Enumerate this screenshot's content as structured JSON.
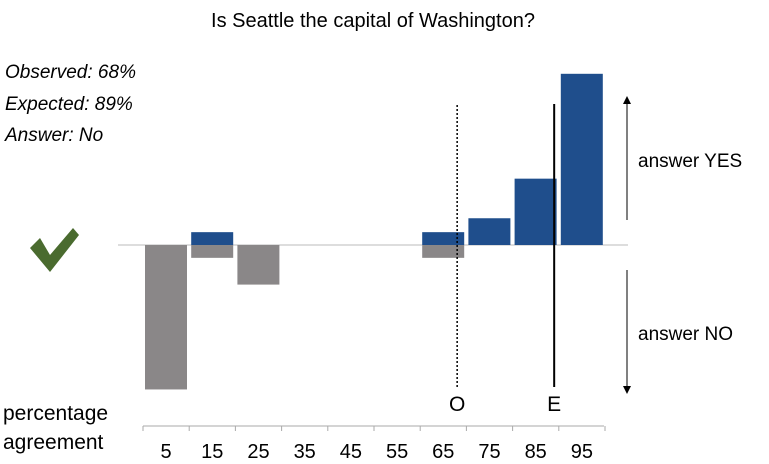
{
  "chart_data": {
    "type": "bar",
    "title": "Is Seattle the capital of Washington?",
    "xlabel": "percentage agreement",
    "categories": [
      "5",
      "15",
      "25",
      "35",
      "45",
      "55",
      "65",
      "75",
      "85",
      "95"
    ],
    "series": [
      {
        "name": "answer YES",
        "color": "#1f4e8c",
        "values": [
          0,
          12,
          0,
          0,
          0,
          0,
          12,
          25,
          62,
          160
        ]
      },
      {
        "name": "answer NO",
        "color": "#8a8788",
        "values": [
          135,
          12,
          37,
          0,
          0,
          0,
          12,
          0,
          0,
          0
        ]
      }
    ],
    "markers": [
      {
        "label": "O",
        "x": 68,
        "style": "dotted"
      },
      {
        "label": "E",
        "x": 89,
        "style": "solid"
      }
    ],
    "annotations": {
      "observed": "Observed: 68%",
      "expected": "Expected: 89%",
      "answer": "Answer: No"
    },
    "check_color": "#4a6b2f",
    "grid": false
  }
}
